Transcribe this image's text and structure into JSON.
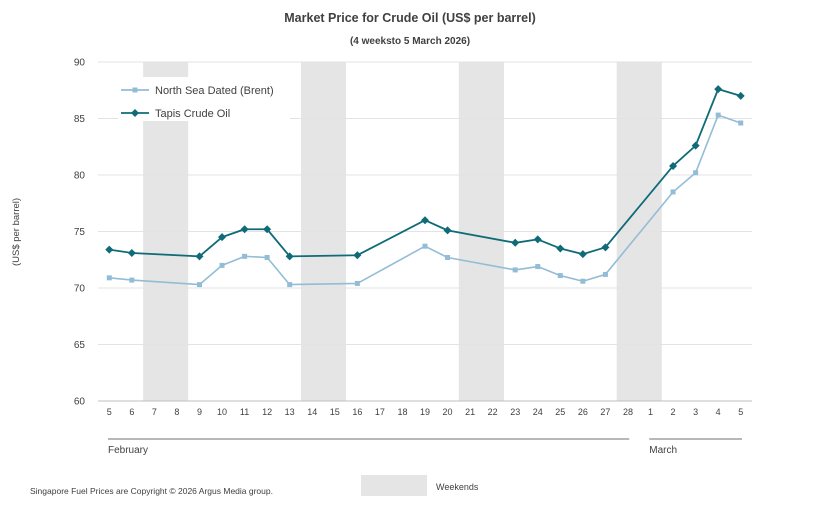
{
  "title": "Market Price for Crude  Oil (US$ per barrel)",
  "subtitle": "(4 weeksto 5 March 2026)",
  "footer": "Singapore Fuel Prices are Copyright © 2026 Argus Media group.",
  "weekend_legend": "Weekends",
  "chart_data": {
    "type": "line",
    "title": "Market Price for Crude  Oil (US$ per barrel)",
    "subtitle": "(4 weeksto 5 March 2026)",
    "xlabel": "",
    "ylabel": "(US$ per barrel)",
    "ylim": [
      60,
      90
    ],
    "yticks": [
      60,
      65,
      70,
      75,
      80,
      85,
      90
    ],
    "grid": true,
    "legend_position": "top-left",
    "categories": [
      "5",
      "6",
      "7",
      "8",
      "9",
      "10",
      "11",
      "12",
      "13",
      "14",
      "15",
      "16",
      "17",
      "18",
      "19",
      "20",
      "21",
      "22",
      "23",
      "24",
      "25",
      "26",
      "27",
      "28",
      "1",
      "2",
      "3",
      "4",
      "5"
    ],
    "month_groups": [
      {
        "label": "February",
        "from": 0,
        "to": 23
      },
      {
        "label": "March",
        "from": 24,
        "to": 28
      }
    ],
    "weekend_bands": [
      [
        2,
        3
      ],
      [
        9,
        10
      ],
      [
        16,
        17
      ],
      [
        23,
        24
      ]
    ],
    "series": [
      {
        "name": "North Sea Dated (Brent)",
        "color": "#93bcd6",
        "marker": "square",
        "values": [
          70.9,
          70.7,
          null,
          null,
          70.3,
          72.0,
          72.8,
          72.7,
          70.3,
          null,
          null,
          70.4,
          null,
          null,
          73.7,
          72.7,
          null,
          null,
          71.6,
          71.9,
          71.1,
          70.6,
          71.2,
          null,
          null,
          78.5,
          80.2,
          85.3,
          84.6
        ]
      },
      {
        "name": "Tapis Crude Oil",
        "color": "#0e6b77",
        "marker": "diamond",
        "values": [
          73.4,
          73.1,
          null,
          null,
          72.8,
          74.5,
          75.2,
          75.2,
          72.8,
          null,
          null,
          72.9,
          null,
          null,
          76.0,
          75.1,
          null,
          null,
          74.0,
          74.3,
          73.5,
          73.0,
          73.6,
          null,
          null,
          80.8,
          82.6,
          87.6,
          87.0
        ]
      }
    ]
  }
}
